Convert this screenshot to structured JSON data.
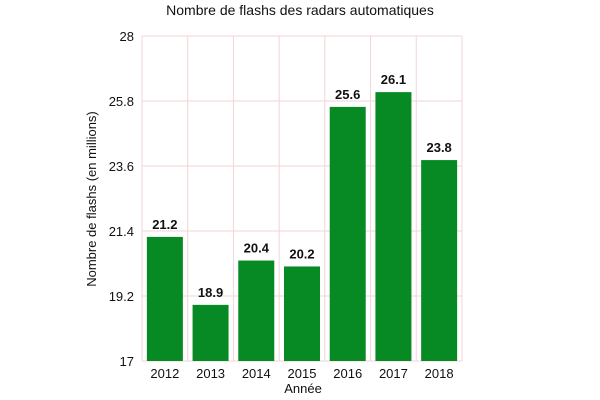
{
  "chart_data": {
    "type": "bar",
    "title": "Nombre de flashs des radars automatiques",
    "xlabel": "Année",
    "ylabel": "Nombre de flashs (en millions)",
    "categories": [
      "2012",
      "2013",
      "2014",
      "2015",
      "2016",
      "2017",
      "2018"
    ],
    "values": [
      21.2,
      18.9,
      20.4,
      20.2,
      25.6,
      26.1,
      23.8
    ],
    "data_labels": [
      "21.2",
      "18.9",
      "20.4",
      "20.2",
      "25.6",
      "26.1",
      "23.8"
    ],
    "ylim": [
      17,
      28
    ],
    "yticks": [
      17,
      19.2,
      21.4,
      23.6,
      25.8,
      28
    ],
    "ytick_labels": [
      "17",
      "19.2",
      "21.4",
      "23.6",
      "25.8",
      "28"
    ],
    "grid": true,
    "legend": "none",
    "colors": {
      "bar": "#078a23",
      "grid": "#f2d6d6",
      "text": "#111111"
    }
  }
}
